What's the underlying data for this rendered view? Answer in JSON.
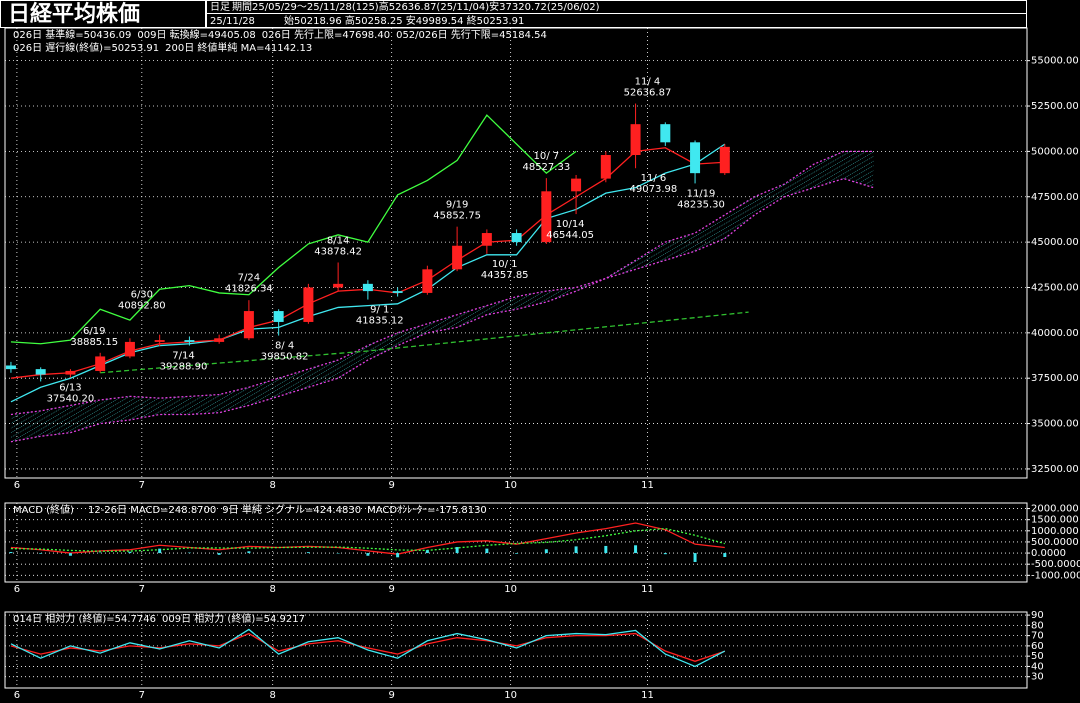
{
  "header": {
    "title": "日経平均株価",
    "period_type": "日足",
    "period": "期間25/05/29〜25/11/28(125)高52636.87(25/11/04)安37320.72(25/06/02)",
    "date": "25/11/28",
    "ohlc": "始50218.96 高50258.25 安49989.54 終50253.91"
  },
  "chart_data": [
    {
      "type": "candlestick",
      "color_up": "#ff2020",
      "color_down": "#40e8f0",
      "grid": true,
      "xlim": [
        -1,
        170.8
      ],
      "ylim": [
        32000,
        56800
      ],
      "xticks": [
        {
          "value": 1,
          "label": "6"
        },
        {
          "value": 22,
          "label": "7"
        },
        {
          "value": 44,
          "label": "8"
        },
        {
          "value": 64,
          "label": "9"
        },
        {
          "value": 84,
          "label": "10"
        },
        {
          "value": 107,
          "label": "11"
        }
      ],
      "yticks": [
        {
          "value": 32500,
          "label": "32500.00"
        },
        {
          "value": 35000,
          "label": "35000.00"
        },
        {
          "value": 37500,
          "label": "37500.00"
        },
        {
          "value": 40000,
          "label": "40000.00"
        },
        {
          "value": 42500,
          "label": "42500.00"
        },
        {
          "value": 45000,
          "label": "45000.00"
        },
        {
          "value": 47500,
          "label": "47500.00"
        },
        {
          "value": 50000,
          "label": "50000.00"
        },
        {
          "value": 52500,
          "label": "52500.00"
        },
        {
          "value": 55000,
          "label": "55000.00"
        }
      ],
      "x": [
        0,
        5,
        10,
        15,
        20,
        25,
        30,
        35,
        40,
        45,
        50,
        55,
        60,
        65,
        70,
        75,
        80,
        85,
        90,
        95,
        100,
        105,
        110,
        115,
        120
      ],
      "open": [
        38200,
        38000,
        37700,
        37900,
        38700,
        39500,
        39600,
        39500,
        39700,
        41200,
        40600,
        42500,
        42700,
        42300,
        42200,
        43500,
        44800,
        45500,
        45000,
        47800,
        48500,
        49800,
        51500,
        50500,
        48800
      ],
      "high": [
        38400,
        38100,
        38000,
        38900,
        39700,
        39900,
        39800,
        39900,
        41800,
        41300,
        42700,
        43878,
        42900,
        42500,
        43700,
        45852,
        45700,
        45700,
        48527,
        48700,
        50000,
        52636,
        51600,
        50600,
        50400
      ],
      "low": [
        37800,
        37320,
        37540,
        37800,
        38600,
        39268,
        39300,
        39400,
        39600,
        39850,
        40500,
        42300,
        41835,
        42000,
        42100,
        43400,
        44357,
        44800,
        44900,
        46544,
        48300,
        49073,
        50300,
        48235,
        48700
      ],
      "close": [
        38000,
        37700,
        37900,
        38700,
        39500,
        39600,
        39500,
        39700,
        41200,
        40600,
        42500,
        42700,
        42300,
        42200,
        43500,
        44800,
        45500,
        45000,
        47800,
        48500,
        49800,
        51500,
        50500,
        48800,
        50250
      ],
      "series": [
        {
          "name": "026日 基準線=50436.09",
          "color": "#40e8f0",
          "x": [
            0,
            5,
            10,
            15,
            20,
            25,
            30,
            35,
            40,
            45,
            50,
            55,
            60,
            65,
            70,
            75,
            80,
            85,
            90,
            95,
            100,
            105,
            110,
            115,
            120
          ],
          "values": [
            36200,
            37000,
            37500,
            38200,
            38900,
            39300,
            39400,
            39600,
            40200,
            40300,
            40900,
            41400,
            41500,
            41600,
            42400,
            43600,
            44300,
            44300,
            46300,
            46800,
            47700,
            48000,
            48800,
            49300,
            50400
          ]
        },
        {
          "name": "009日 転換線=49405.08",
          "color": "#ff2020",
          "x": [
            0,
            5,
            10,
            15,
            20,
            25,
            30,
            35,
            40,
            45,
            50,
            55,
            60,
            65,
            70,
            75,
            80,
            85,
            90,
            95,
            100,
            105,
            110,
            115,
            120
          ],
          "values": [
            37500,
            37700,
            37800,
            38300,
            39000,
            39400,
            39500,
            39600,
            40300,
            40700,
            41600,
            42300,
            42400,
            42200,
            42900,
            44000,
            45000,
            45100,
            46500,
            47500,
            48500,
            50000,
            50200,
            49300,
            49400
          ]
        },
        {
          "name": "026日 先行上限=47698.40",
          "color": "#e040e0",
          "dash": "dotted",
          "x": [
            0,
            5,
            10,
            15,
            20,
            25,
            30,
            35,
            40,
            45,
            50,
            55,
            60,
            65,
            70,
            75,
            80,
            85,
            90,
            95,
            100,
            105,
            110,
            115,
            120,
            125,
            130,
            135,
            140,
            145
          ],
          "values": [
            35500,
            35700,
            36000,
            36300,
            36500,
            36400,
            36500,
            36600,
            37000,
            37500,
            38000,
            38500,
            39300,
            40000,
            40500,
            41000,
            41500,
            42000,
            42300,
            42500,
            43000,
            44000,
            45000,
            45500,
            46500,
            47500,
            48200,
            49300,
            50000,
            50000
          ]
        },
        {
          "name": "052/026日 先行下限=45184.54",
          "color": "#e040e0",
          "dash": "dotted",
          "x": [
            0,
            5,
            10,
            15,
            20,
            25,
            30,
            35,
            40,
            45,
            50,
            55,
            60,
            65,
            70,
            75,
            80,
            85,
            90,
            95,
            100,
            105,
            110,
            115,
            120,
            125,
            130,
            135,
            140,
            145
          ],
          "values": [
            34000,
            34300,
            34500,
            35000,
            35200,
            35500,
            35500,
            35600,
            36000,
            36500,
            37000,
            37500,
            38500,
            39300,
            40000,
            40300,
            41000,
            41300,
            41700,
            42300,
            43000,
            43500,
            44000,
            44500,
            45200,
            46500,
            47500,
            48000,
            48500,
            48000
          ]
        },
        {
          "name": "026日 遅行線(終値)=50253.91",
          "color": "#40ff40",
          "x": [
            0,
            5,
            10,
            15,
            20,
            25,
            30,
            35,
            40,
            45,
            50,
            55,
            60,
            65,
            70,
            75,
            80,
            85,
            90,
            95
          ],
          "values": [
            39500,
            39400,
            39600,
            41300,
            40700,
            42400,
            42600,
            42200,
            42100,
            43600,
            44900,
            45400,
            45000,
            47600,
            48400,
            49500,
            52000,
            50400,
            48800,
            50000
          ]
        },
        {
          "name": "200日 終値単純 MA=41142.13",
          "color": "#30c030",
          "dash": "dashed",
          "x": [
            15,
            30,
            45,
            60,
            75,
            90,
            105,
            124
          ],
          "values": [
            37800,
            38200,
            38600,
            39000,
            39500,
            40000,
            40500,
            41142.13
          ]
        }
      ],
      "cloud": [
        2,
        3
      ],
      "annotations": [
        {
          "date": "11/ 4",
          "price": "52636.87",
          "x": 107,
          "y": 52636.87,
          "pos": "above",
          "color": "#ff3030"
        },
        {
          "date": "10/ 7",
          "price": "48527.33",
          "x": 90,
          "y": 48527.33,
          "pos": "above",
          "color": "#ff3030"
        },
        {
          "date": "9/19",
          "price": "45852.75",
          "x": 75,
          "y": 45852.75,
          "pos": "above",
          "color": "#ff3030"
        },
        {
          "date": "8/14",
          "price": "43878.42",
          "x": 55,
          "y": 43878.42,
          "pos": "above",
          "color": "#ff3030"
        },
        {
          "date": "7/24",
          "price": "41826.34",
          "x": 40,
          "y": 41826.34,
          "pos": "above",
          "color": "#ff3030"
        },
        {
          "date": "6/30",
          "price": "40892.80",
          "x": 22,
          "y": 40892.8,
          "pos": "above",
          "color": "#ff3030"
        },
        {
          "date": "6/19",
          "price": "38885.15",
          "x": 14,
          "y": 38885.15,
          "pos": "above",
          "color": "#ff3030"
        },
        {
          "date": "6/13",
          "price": "37540.20",
          "x": 10,
          "y": 37540.2,
          "pos": "below",
          "color": "#c0f0ff"
        },
        {
          "date": "7/14",
          "price": "39288.90",
          "x": 29,
          "y": 39288.9,
          "pos": "below",
          "color": "#c0f0ff"
        },
        {
          "date": "8/ 4",
          "price": "39850.82",
          "x": 46,
          "y": 39850.82,
          "pos": "below",
          "color": "#c0f0ff"
        },
        {
          "date": "9/ 1",
          "price": "41835.12",
          "x": 62,
          "y": 41835.12,
          "pos": "below",
          "color": "#c0f0ff"
        },
        {
          "date": "10/ 1",
          "price": "44357.85",
          "x": 83,
          "y": 44357.85,
          "pos": "below",
          "color": "#c0f0ff"
        },
        {
          "date": "10/14",
          "price": "46544.05",
          "x": 94,
          "y": 46544.05,
          "pos": "below",
          "color": "#c0f0ff"
        },
        {
          "date": "11/ 6",
          "price": "49073.98",
          "x": 108,
          "y": 49073.98,
          "pos": "below",
          "color": "#c0f0ff"
        },
        {
          "date": "11/19",
          "price": "48235.30",
          "x": 116,
          "y": 48235.3,
          "pos": "below",
          "color": "#c0f0ff"
        }
      ]
    },
    {
      "type": "line",
      "title": "MACD (終値)",
      "grid": true,
      "xlim": [
        -1,
        170.8
      ],
      "ylim": [
        -1300,
        2250
      ],
      "xticks": [
        {
          "value": 1,
          "label": "6"
        },
        {
          "value": 22,
          "label": "7"
        },
        {
          "value": 44,
          "label": "8"
        },
        {
          "value": 64,
          "label": "9"
        },
        {
          "value": 84,
          "label": "10"
        },
        {
          "value": 107,
          "label": "11"
        }
      ],
      "yticks": [
        {
          "value": -1000,
          "label": "-1000.000"
        },
        {
          "value": -500,
          "label": "-500.0000"
        },
        {
          "value": 0,
          "label": "0.0000"
        },
        {
          "value": 500,
          "label": "500.0000"
        },
        {
          "value": 1000,
          "label": "1000.000"
        },
        {
          "value": 1500,
          "label": "1500.000"
        },
        {
          "value": 2000,
          "label": "2000.000"
        }
      ],
      "x": [
        0,
        5,
        10,
        15,
        20,
        25,
        30,
        35,
        40,
        45,
        50,
        55,
        60,
        65,
        70,
        75,
        80,
        85,
        90,
        95,
        100,
        105,
        110,
        115,
        120
      ],
      "series": [
        {
          "name": "12-26日 MACD=248.8700",
          "color": "#ff2020",
          "values": [
            250,
            150,
            0,
            100,
            150,
            350,
            250,
            150,
            300,
            250,
            300,
            250,
            100,
            -50,
            250,
            500,
            550,
            400,
            650,
            900,
            1100,
            1350,
            1050,
            400,
            248.87
          ]
        },
        {
          "name": "9日 単純 シグナル=424.4830",
          "color": "#40ff40",
          "dash": "dotted",
          "values": [
            200,
            180,
            120,
            80,
            90,
            150,
            230,
            230,
            220,
            250,
            260,
            270,
            220,
            140,
            120,
            230,
            350,
            430,
            480,
            600,
            780,
            1000,
            1100,
            800,
            424.48
          ]
        },
        {
          "name": "MACDｵｼﾚｰﾀｰ=-175.8130",
          "color": "#40e8f0",
          "style": "bar",
          "values": [
            50,
            -30,
            -120,
            20,
            60,
            200,
            20,
            -80,
            80,
            0,
            40,
            -20,
            -120,
            -190,
            130,
            270,
            200,
            -30,
            170,
            300,
            320,
            350,
            -50,
            -400,
            -175.81
          ]
        }
      ]
    },
    {
      "type": "line",
      "grid": true,
      "xlim": [
        -1,
        170.8
      ],
      "ylim": [
        19,
        93
      ],
      "xticks": [
        {
          "value": 1,
          "label": "6"
        },
        {
          "value": 22,
          "label": "7"
        },
        {
          "value": 44,
          "label": "8"
        },
        {
          "value": 64,
          "label": "9"
        },
        {
          "value": 84,
          "label": "10"
        },
        {
          "value": 107,
          "label": "11"
        }
      ],
      "yticks": [
        30,
        40,
        50,
        60,
        70,
        80,
        90
      ],
      "x": [
        0,
        5,
        10,
        15,
        20,
        25,
        30,
        35,
        40,
        45,
        50,
        55,
        60,
        65,
        70,
        75,
        80,
        85,
        90,
        95,
        100,
        105,
        110,
        115,
        120
      ],
      "series": [
        {
          "name": "014日 相対力 (終値)=54.7746",
          "color": "#ff2020",
          "values": [
            60,
            52,
            58,
            55,
            60,
            58,
            62,
            60,
            72,
            55,
            62,
            65,
            58,
            52,
            62,
            68,
            65,
            60,
            68,
            70,
            70,
            72,
            55,
            45,
            54.77
          ]
        },
        {
          "name": "009日 相対力 (終値)=54.9217",
          "color": "#40e8f0",
          "values": [
            62,
            48,
            60,
            53,
            63,
            57,
            65,
            58,
            76,
            52,
            64,
            68,
            56,
            48,
            65,
            72,
            66,
            58,
            70,
            72,
            71,
            75,
            52,
            40,
            54.92
          ]
        }
      ]
    }
  ]
}
